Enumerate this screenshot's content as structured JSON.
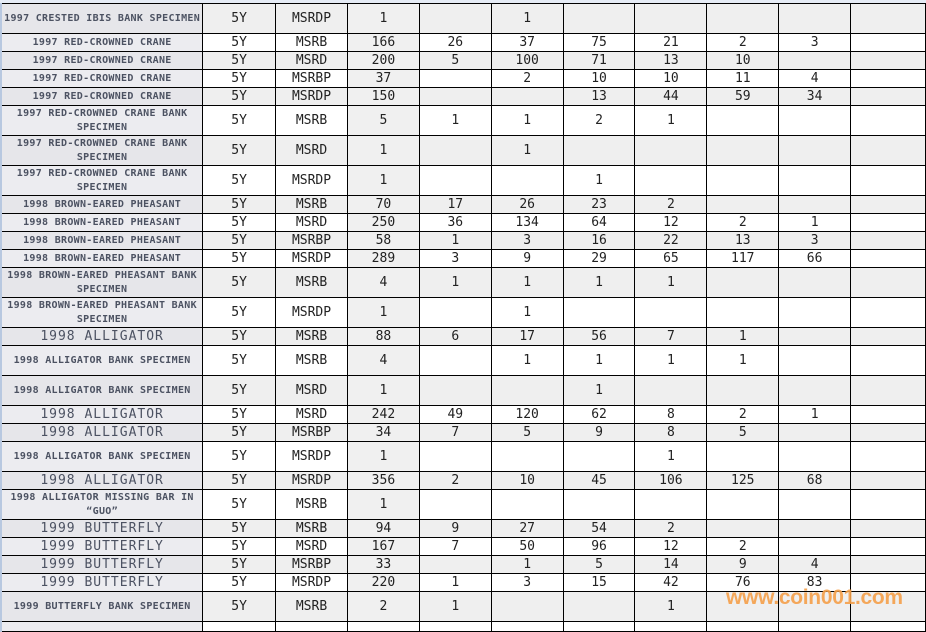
{
  "watermark": "www.coin001.com",
  "rows": [
    {
      "name": "1997 CRESTED IBIS BANK SPECIMEN",
      "term": "5Y",
      "grade": "MSRDP",
      "total": "1",
      "counts": [
        "",
        "1",
        "",
        "",
        "",
        "",
        ""
      ]
    },
    {
      "name": "1997 RED-CROWNED CRANE",
      "term": "5Y",
      "grade": "MSRB",
      "total": "166",
      "counts": [
        "26",
        "37",
        "75",
        "21",
        "2",
        "3",
        ""
      ]
    },
    {
      "name": "1997 RED-CROWNED CRANE",
      "term": "5Y",
      "grade": "MSRD",
      "total": "200",
      "counts": [
        "5",
        "100",
        "71",
        "13",
        "10",
        "",
        ""
      ]
    },
    {
      "name": "1997 RED-CROWNED CRANE",
      "term": "5Y",
      "grade": "MSRBP",
      "total": "37",
      "counts": [
        "",
        "2",
        "10",
        "10",
        "11",
        "4",
        ""
      ]
    },
    {
      "name": "1997 RED-CROWNED CRANE",
      "term": "5Y",
      "grade": "MSRDP",
      "total": "150",
      "counts": [
        "",
        "",
        "13",
        "44",
        "59",
        "34",
        ""
      ]
    },
    {
      "name": "1997 RED-CROWNED CRANE BANK SPECIMEN",
      "term": "5Y",
      "grade": "MSRB",
      "total": "5",
      "counts": [
        "1",
        "1",
        "2",
        "1",
        "",
        "",
        ""
      ]
    },
    {
      "name": "1997 RED-CROWNED CRANE BANK SPECIMEN",
      "term": "5Y",
      "grade": "MSRD",
      "total": "1",
      "counts": [
        "",
        "1",
        "",
        "",
        "",
        "",
        ""
      ]
    },
    {
      "name": "1997 RED-CROWNED CRANE BANK SPECIMEN",
      "term": "5Y",
      "grade": "MSRDP",
      "total": "1",
      "counts": [
        "",
        "",
        "1",
        "",
        "",
        "",
        ""
      ]
    },
    {
      "name": "1998 BROWN-EARED PHEASANT",
      "term": "5Y",
      "grade": "MSRB",
      "total": "70",
      "counts": [
        "17",
        "26",
        "23",
        "2",
        "",
        "",
        ""
      ]
    },
    {
      "name": "1998 BROWN-EARED PHEASANT",
      "term": "5Y",
      "grade": "MSRD",
      "total": "250",
      "counts": [
        "36",
        "134",
        "64",
        "12",
        "2",
        "1",
        ""
      ]
    },
    {
      "name": "1998 BROWN-EARED PHEASANT",
      "term": "5Y",
      "grade": "MSRBP",
      "total": "58",
      "counts": [
        "1",
        "3",
        "16",
        "22",
        "13",
        "3",
        ""
      ]
    },
    {
      "name": "1998 BROWN-EARED PHEASANT",
      "term": "5Y",
      "grade": "MSRDP",
      "total": "289",
      "counts": [
        "3",
        "9",
        "29",
        "65",
        "117",
        "66",
        ""
      ]
    },
    {
      "name": "1998 BROWN-EARED PHEASANT BANK SPECIMEN",
      "term": "5Y",
      "grade": "MSRB",
      "total": "4",
      "counts": [
        "1",
        "1",
        "1",
        "1",
        "",
        "",
        ""
      ]
    },
    {
      "name": "1998 BROWN-EARED PHEASANT BANK SPECIMEN",
      "term": "5Y",
      "grade": "MSRDP",
      "total": "1",
      "counts": [
        "",
        "1",
        "",
        "",
        "",
        "",
        ""
      ]
    },
    {
      "name": "1998 ALLIGATOR",
      "term": "5Y",
      "grade": "MSRB",
      "total": "88",
      "counts": [
        "6",
        "17",
        "56",
        "7",
        "1",
        "",
        ""
      ]
    },
    {
      "name": "1998 ALLIGATOR BANK SPECIMEN",
      "term": "5Y",
      "grade": "MSRB",
      "total": "4",
      "counts": [
        "",
        "1",
        "1",
        "1",
        "1",
        "",
        ""
      ]
    },
    {
      "name": "1998 ALLIGATOR BANK SPECIMEN",
      "term": "5Y",
      "grade": "MSRD",
      "total": "1",
      "counts": [
        "",
        "",
        "1",
        "",
        "",
        "",
        ""
      ]
    },
    {
      "name": "1998 ALLIGATOR",
      "term": "5Y",
      "grade": "MSRD",
      "total": "242",
      "counts": [
        "49",
        "120",
        "62",
        "8",
        "2",
        "1",
        ""
      ]
    },
    {
      "name": "1998 ALLIGATOR",
      "term": "5Y",
      "grade": "MSRBP",
      "total": "34",
      "counts": [
        "7",
        "5",
        "9",
        "8",
        "5",
        "",
        ""
      ]
    },
    {
      "name": "1998 ALLIGATOR BANK SPECIMEN",
      "term": "5Y",
      "grade": "MSRDP",
      "total": "1",
      "counts": [
        "",
        "",
        "",
        "1",
        "",
        "",
        ""
      ]
    },
    {
      "name": "1998 ALLIGATOR",
      "term": "5Y",
      "grade": "MSRDP",
      "total": "356",
      "counts": [
        "2",
        "10",
        "45",
        "106",
        "125",
        "68",
        ""
      ]
    },
    {
      "name": "1998 ALLIGATOR MISSING BAR IN “GUO”",
      "term": "5Y",
      "grade": "MSRB",
      "total": "1",
      "counts": [
        "",
        "",
        "",
        "",
        "",
        "",
        ""
      ]
    },
    {
      "name": "1999 BUTTERFLY",
      "term": "5Y",
      "grade": "MSRB",
      "total": "94",
      "counts": [
        "9",
        "27",
        "54",
        "2",
        "",
        "",
        ""
      ]
    },
    {
      "name": "1999 BUTTERFLY",
      "term": "5Y",
      "grade": "MSRD",
      "total": "167",
      "counts": [
        "7",
        "50",
        "96",
        "12",
        "2",
        "",
        ""
      ]
    },
    {
      "name": "1999 BUTTERFLY",
      "term": "5Y",
      "grade": "MSRBP",
      "total": "33",
      "counts": [
        "",
        "1",
        "5",
        "14",
        "9",
        "4",
        ""
      ]
    },
    {
      "name": "1999 BUTTERFLY",
      "term": "5Y",
      "grade": "MSRDP",
      "total": "220",
      "counts": [
        "1",
        "3",
        "15",
        "42",
        "76",
        "83",
        ""
      ]
    },
    {
      "name": "1999 BUTTERFLY BANK SPECIMEN",
      "term": "5Y",
      "grade": "MSRB",
      "total": "2",
      "counts": [
        "1",
        "",
        "",
        "1",
        "",
        "",
        ""
      ]
    }
  ]
}
